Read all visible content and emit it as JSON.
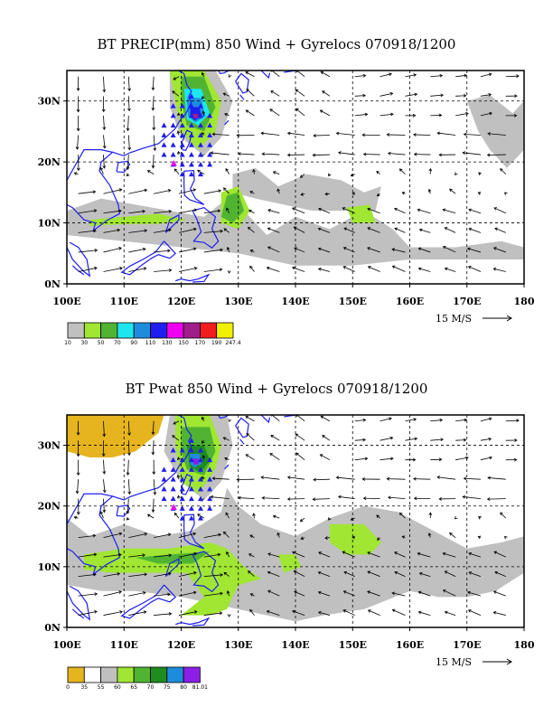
{
  "panels": [
    {
      "title": "BT PRECIP(mm) 850 Wind + Gyrelocs 070918/1200",
      "x_ticks": [
        "100E",
        "110E",
        "120E",
        "130E",
        "140E",
        "150E",
        "160E",
        "170E",
        "180"
      ],
      "y_ticks": [
        "30N",
        "20N",
        "10N",
        "0N"
      ],
      "reference_vector": "15 M/S",
      "colorbar": {
        "colors": [
          "#c0c0c0",
          "#a0e632",
          "#50b432",
          "#1ee6f0",
          "#1e8cdc",
          "#1e1ef0",
          "#f000f0",
          "#a01e8c",
          "#f01e1e",
          "#f0f000"
        ],
        "labels": [
          "10",
          "30",
          "50",
          "70",
          "90",
          "110",
          "130",
          "150",
          "170",
          "190",
          "247.4"
        ]
      }
    },
    {
      "title": "BT Pwat 850 Wind + Gyrelocs 070918/1200",
      "x_ticks": [
        "100E",
        "110E",
        "120E",
        "130E",
        "140E",
        "150E",
        "160E",
        "170E",
        "180"
      ],
      "y_ticks": [
        "30N",
        "20N",
        "10N",
        "0N"
      ],
      "reference_vector": "15 M/S",
      "colorbar": {
        "colors": [
          "#e6b41e",
          "#ffffff",
          "#c0c0c0",
          "#a0e632",
          "#50b432",
          "#1e8c1e",
          "#1e8cdc",
          "#8c1ee6"
        ],
        "labels": [
          "0",
          "35",
          "55",
          "60",
          "65",
          "70",
          "75",
          "80",
          "81.01"
        ]
      }
    }
  ],
  "map": {
    "lon_range": [
      100,
      180
    ],
    "lat_range": [
      0,
      35
    ],
    "coast_color": "#1e1ef0",
    "gyre_marker_color": "#1e1ef0",
    "gyre_center_color": "#f000f0"
  }
}
